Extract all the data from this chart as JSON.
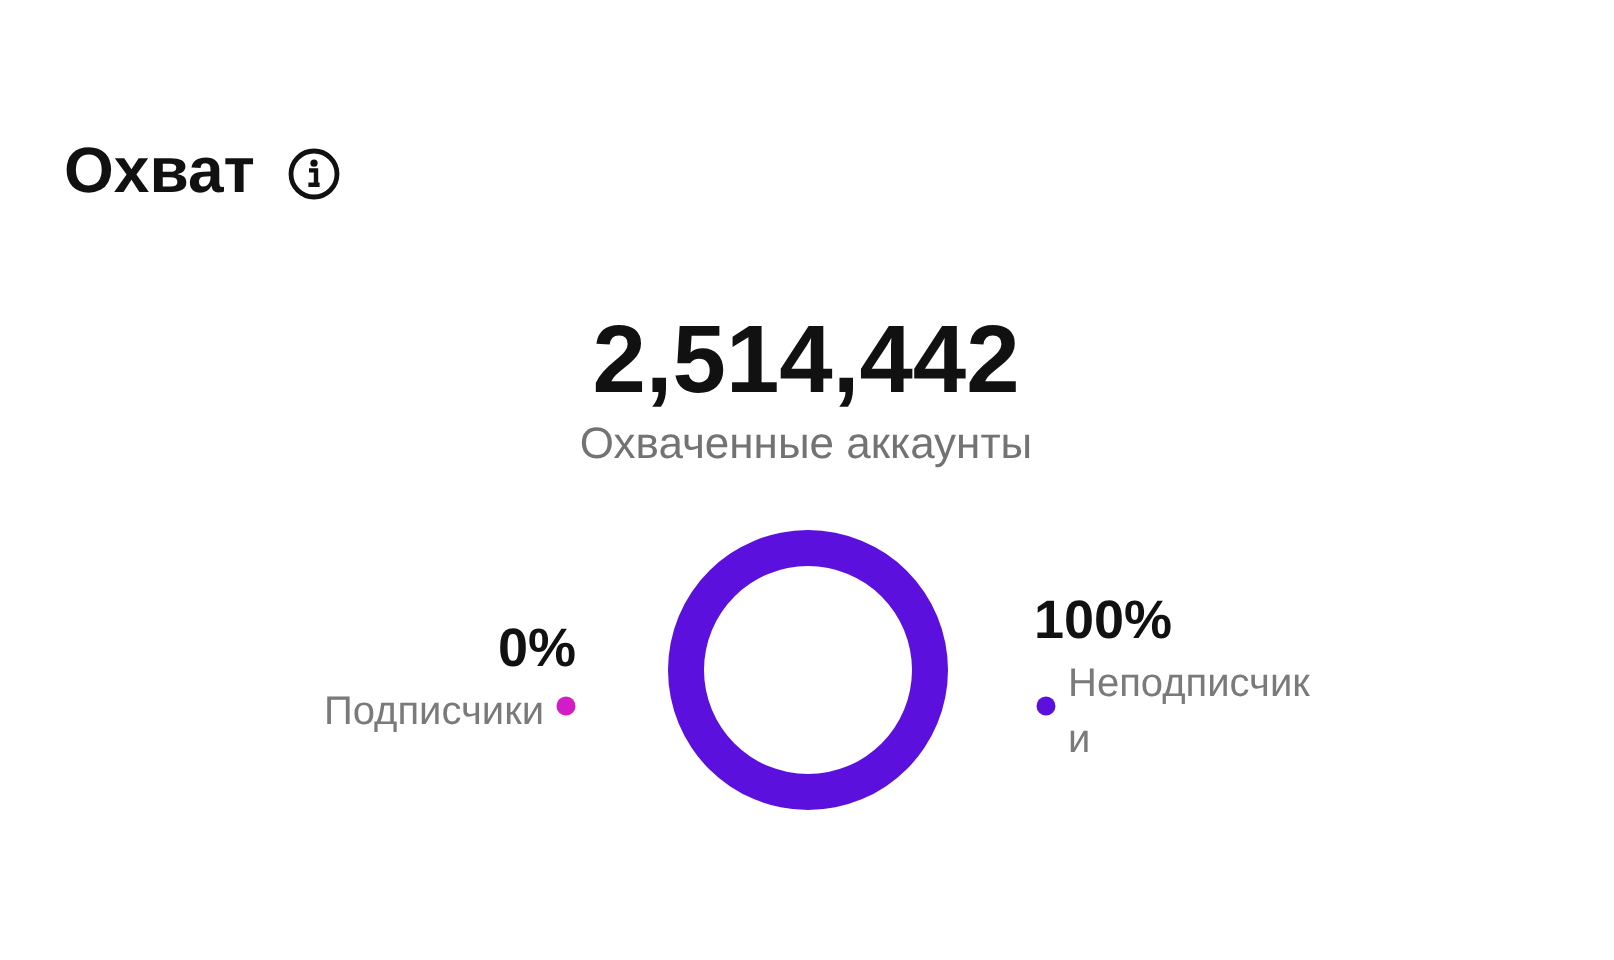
{
  "chart_data": {
    "type": "donut",
    "title": "Охват",
    "annotations": [
      "2,514,442",
      "Охваченные аккаунты"
    ],
    "categories": [
      "Подписчики",
      "Неподписчики"
    ],
    "values": [
      0,
      100
    ],
    "colors": [
      "#d41bc8",
      "#5b10de"
    ],
    "value_labels": [
      "0%",
      "100%"
    ]
  }
}
